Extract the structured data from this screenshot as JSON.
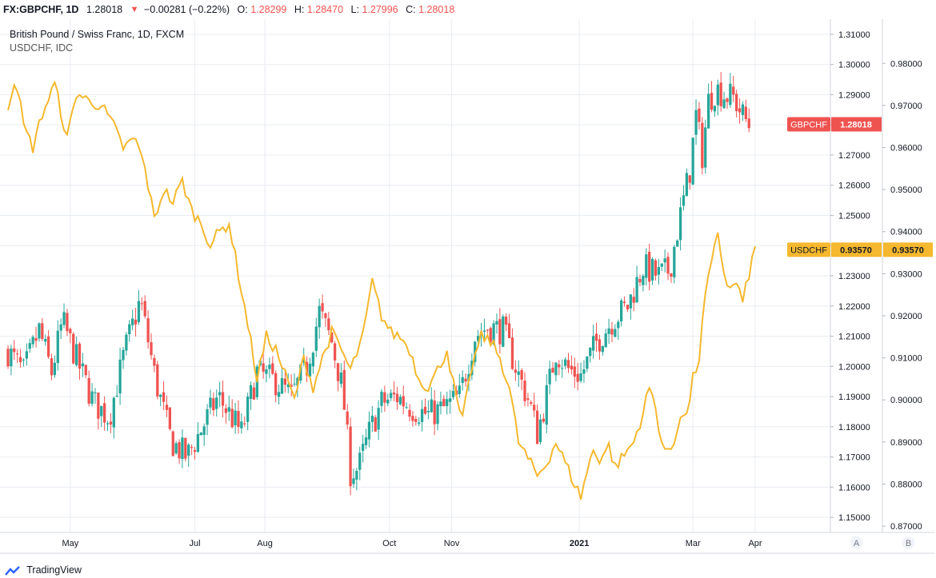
{
  "header": {
    "symbol": "FX:GBPCHF, 1D",
    "last": "1.28018",
    "change": "−0.00281 (−0.22%)",
    "open_label": "O:",
    "open": "1.28299",
    "high_label": "H:",
    "high": "1.28470",
    "low_label": "L:",
    "low": "1.27996",
    "close_label": "C:",
    "close": "1.28018"
  },
  "legend": {
    "main": "British Pound / Swiss Franc, 1D, FXCM",
    "compare": "USDCHF, IDC"
  },
  "colors": {
    "up": "#26a69a",
    "down": "#ef5350",
    "compare_line": "#f5b82e",
    "grid": "#e9ecf1",
    "axis_text": "#131722"
  },
  "brand": "TradingView",
  "chart_data": {
    "type": "candlestick",
    "x_tick_labels": [
      "May",
      "Jul",
      "Aug",
      "Oct",
      "Nov",
      "2021",
      "Mar",
      "Apr"
    ],
    "right_axis_a": {
      "name": "GBPCHF",
      "range": [
        1.145,
        1.315
      ],
      "ticks": [
        "1.31000",
        "1.30000",
        "1.29000",
        "1.28000",
        "1.27000",
        "1.26000",
        "1.25000",
        "1.24000",
        "1.23000",
        "1.22000",
        "1.21000",
        "1.20000",
        "1.19000",
        "1.18000",
        "1.17000",
        "1.16000",
        "1.15000"
      ],
      "badge_label": "GBPCHF",
      "badge_value": "1.28018"
    },
    "right_axis_b": {
      "name": "USDCHF",
      "range": [
        0.8685,
        0.9905
      ],
      "ticks": [
        "0.98000",
        "0.97000",
        "0.96000",
        "0.95000",
        "0.94000",
        "0.93000",
        "0.92000",
        "0.91000",
        "0.90000",
        "0.89000",
        "0.88000",
        "0.87000"
      ],
      "badge_label": "USDCHF",
      "badge_value": "0.93570"
    },
    "scale_buttons": [
      "A",
      "B"
    ],
    "gbpchf_close_path": [
      {
        "i": 0,
        "v": 1.205
      },
      {
        "i": 10,
        "v": 1.198
      },
      {
        "i": 20,
        "v": 1.212
      },
      {
        "i": 28,
        "v": 1.198
      },
      {
        "i": 35,
        "v": 1.215
      },
      {
        "i": 45,
        "v": 1.201
      },
      {
        "i": 55,
        "v": 1.188
      },
      {
        "i": 65,
        "v": 1.183
      },
      {
        "i": 75,
        "v": 1.205
      },
      {
        "i": 85,
        "v": 1.222
      },
      {
        "i": 95,
        "v": 1.195
      },
      {
        "i": 105,
        "v": 1.175
      },
      {
        "i": 115,
        "v": 1.17
      },
      {
        "i": 125,
        "v": 1.18
      },
      {
        "i": 135,
        "v": 1.19
      },
      {
        "i": 150,
        "v": 1.178
      },
      {
        "i": 160,
        "v": 1.198
      },
      {
        "i": 172,
        "v": 1.195
      },
      {
        "i": 182,
        "v": 1.19
      },
      {
        "i": 192,
        "v": 1.2
      },
      {
        "i": 200,
        "v": 1.218
      },
      {
        "i": 208,
        "v": 1.208
      },
      {
        "i": 215,
        "v": 1.192
      },
      {
        "i": 220,
        "v": 1.165
      },
      {
        "i": 225,
        "v": 1.166
      },
      {
        "i": 232,
        "v": 1.178
      },
      {
        "i": 240,
        "v": 1.188
      },
      {
        "i": 250,
        "v": 1.19
      },
      {
        "i": 260,
        "v": 1.186
      },
      {
        "i": 270,
        "v": 1.184
      },
      {
        "i": 280,
        "v": 1.186
      },
      {
        "i": 290,
        "v": 1.19
      },
      {
        "i": 300,
        "v": 1.21
      },
      {
        "i": 308,
        "v": 1.213
      },
      {
        "i": 318,
        "v": 1.212
      },
      {
        "i": 328,
        "v": 1.197
      },
      {
        "i": 335,
        "v": 1.188
      },
      {
        "i": 340,
        "v": 1.178
      },
      {
        "i": 345,
        "v": 1.188
      },
      {
        "i": 352,
        "v": 1.205
      },
      {
        "i": 360,
        "v": 1.199
      },
      {
        "i": 368,
        "v": 1.197
      },
      {
        "i": 378,
        "v": 1.208
      },
      {
        "i": 388,
        "v": 1.215
      },
      {
        "i": 398,
        "v": 1.22
      },
      {
        "i": 408,
        "v": 1.233
      },
      {
        "i": 418,
        "v": 1.23
      },
      {
        "i": 425,
        "v": 1.232
      },
      {
        "i": 432,
        "v": 1.25
      },
      {
        "i": 438,
        "v": 1.265
      },
      {
        "i": 442,
        "v": 1.283
      },
      {
        "i": 446,
        "v": 1.27
      },
      {
        "i": 450,
        "v": 1.288
      },
      {
        "i": 455,
        "v": 1.292
      },
      {
        "i": 460,
        "v": 1.29
      },
      {
        "i": 466,
        "v": 1.289
      },
      {
        "i": 472,
        "v": 1.283
      },
      {
        "i": 476,
        "v": 1.28
      }
    ],
    "usdchf_path": [
      {
        "i": 0,
        "v": 0.97
      },
      {
        "i": 5,
        "v": 0.977
      },
      {
        "i": 10,
        "v": 0.965
      },
      {
        "i": 16,
        "v": 0.96
      },
      {
        "i": 22,
        "v": 0.968
      },
      {
        "i": 30,
        "v": 0.975
      },
      {
        "i": 38,
        "v": 0.962
      },
      {
        "i": 44,
        "v": 0.973
      },
      {
        "i": 52,
        "v": 0.971
      },
      {
        "i": 60,
        "v": 0.97
      },
      {
        "i": 68,
        "v": 0.965
      },
      {
        "i": 74,
        "v": 0.96
      },
      {
        "i": 82,
        "v": 0.962
      },
      {
        "i": 88,
        "v": 0.955
      },
      {
        "i": 94,
        "v": 0.943
      },
      {
        "i": 100,
        "v": 0.95
      },
      {
        "i": 106,
        "v": 0.947
      },
      {
        "i": 112,
        "v": 0.952
      },
      {
        "i": 118,
        "v": 0.945
      },
      {
        "i": 124,
        "v": 0.942
      },
      {
        "i": 130,
        "v": 0.937
      },
      {
        "i": 136,
        "v": 0.94
      },
      {
        "i": 142,
        "v": 0.942
      },
      {
        "i": 148,
        "v": 0.93
      },
      {
        "i": 154,
        "v": 0.918
      },
      {
        "i": 160,
        "v": 0.905
      },
      {
        "i": 166,
        "v": 0.915
      },
      {
        "i": 172,
        "v": 0.912
      },
      {
        "i": 178,
        "v": 0.906
      },
      {
        "i": 184,
        "v": 0.9
      },
      {
        "i": 190,
        "v": 0.91
      },
      {
        "i": 196,
        "v": 0.903
      },
      {
        "i": 202,
        "v": 0.91
      },
      {
        "i": 208,
        "v": 0.916
      },
      {
        "i": 214,
        "v": 0.912
      },
      {
        "i": 220,
        "v": 0.907
      },
      {
        "i": 228,
        "v": 0.915
      },
      {
        "i": 234,
        "v": 0.928
      },
      {
        "i": 240,
        "v": 0.92
      },
      {
        "i": 246,
        "v": 0.916
      },
      {
        "i": 252,
        "v": 0.915
      },
      {
        "i": 258,
        "v": 0.912
      },
      {
        "i": 264,
        "v": 0.905
      },
      {
        "i": 270,
        "v": 0.903
      },
      {
        "i": 276,
        "v": 0.907
      },
      {
        "i": 282,
        "v": 0.912
      },
      {
        "i": 288,
        "v": 0.9
      },
      {
        "i": 292,
        "v": 0.895
      },
      {
        "i": 298,
        "v": 0.908
      },
      {
        "i": 304,
        "v": 0.915
      },
      {
        "i": 310,
        "v": 0.914
      },
      {
        "i": 316,
        "v": 0.91
      },
      {
        "i": 322,
        "v": 0.903
      },
      {
        "i": 328,
        "v": 0.89
      },
      {
        "i": 334,
        "v": 0.886
      },
      {
        "i": 340,
        "v": 0.882
      },
      {
        "i": 346,
        "v": 0.885
      },
      {
        "i": 352,
        "v": 0.89
      },
      {
        "i": 358,
        "v": 0.885
      },
      {
        "i": 364,
        "v": 0.88
      },
      {
        "i": 368,
        "v": 0.877
      },
      {
        "i": 372,
        "v": 0.883
      },
      {
        "i": 376,
        "v": 0.888
      },
      {
        "i": 380,
        "v": 0.886
      },
      {
        "i": 386,
        "v": 0.889
      },
      {
        "i": 390,
        "v": 0.884
      },
      {
        "i": 396,
        "v": 0.887
      },
      {
        "i": 402,
        "v": 0.89
      },
      {
        "i": 408,
        "v": 0.897
      },
      {
        "i": 412,
        "v": 0.903
      },
      {
        "i": 416,
        "v": 0.898
      },
      {
        "i": 420,
        "v": 0.89
      },
      {
        "i": 424,
        "v": 0.887
      },
      {
        "i": 428,
        "v": 0.89
      },
      {
        "i": 432,
        "v": 0.897
      },
      {
        "i": 436,
        "v": 0.896
      },
      {
        "i": 440,
        "v": 0.905
      },
      {
        "i": 444,
        "v": 0.91
      },
      {
        "i": 448,
        "v": 0.925
      },
      {
        "i": 452,
        "v": 0.932
      },
      {
        "i": 456,
        "v": 0.94
      },
      {
        "i": 460,
        "v": 0.93
      },
      {
        "i": 464,
        "v": 0.926
      },
      {
        "i": 468,
        "v": 0.928
      },
      {
        "i": 472,
        "v": 0.923
      },
      {
        "i": 476,
        "v": 0.93
      },
      {
        "i": 480,
        "v": 0.936
      }
    ],
    "x_tick_index": [
      40,
      120,
      165,
      245,
      285,
      367,
      440,
      480
    ],
    "total_bars": 480,
    "grid": true,
    "legend_position": "top-left"
  }
}
